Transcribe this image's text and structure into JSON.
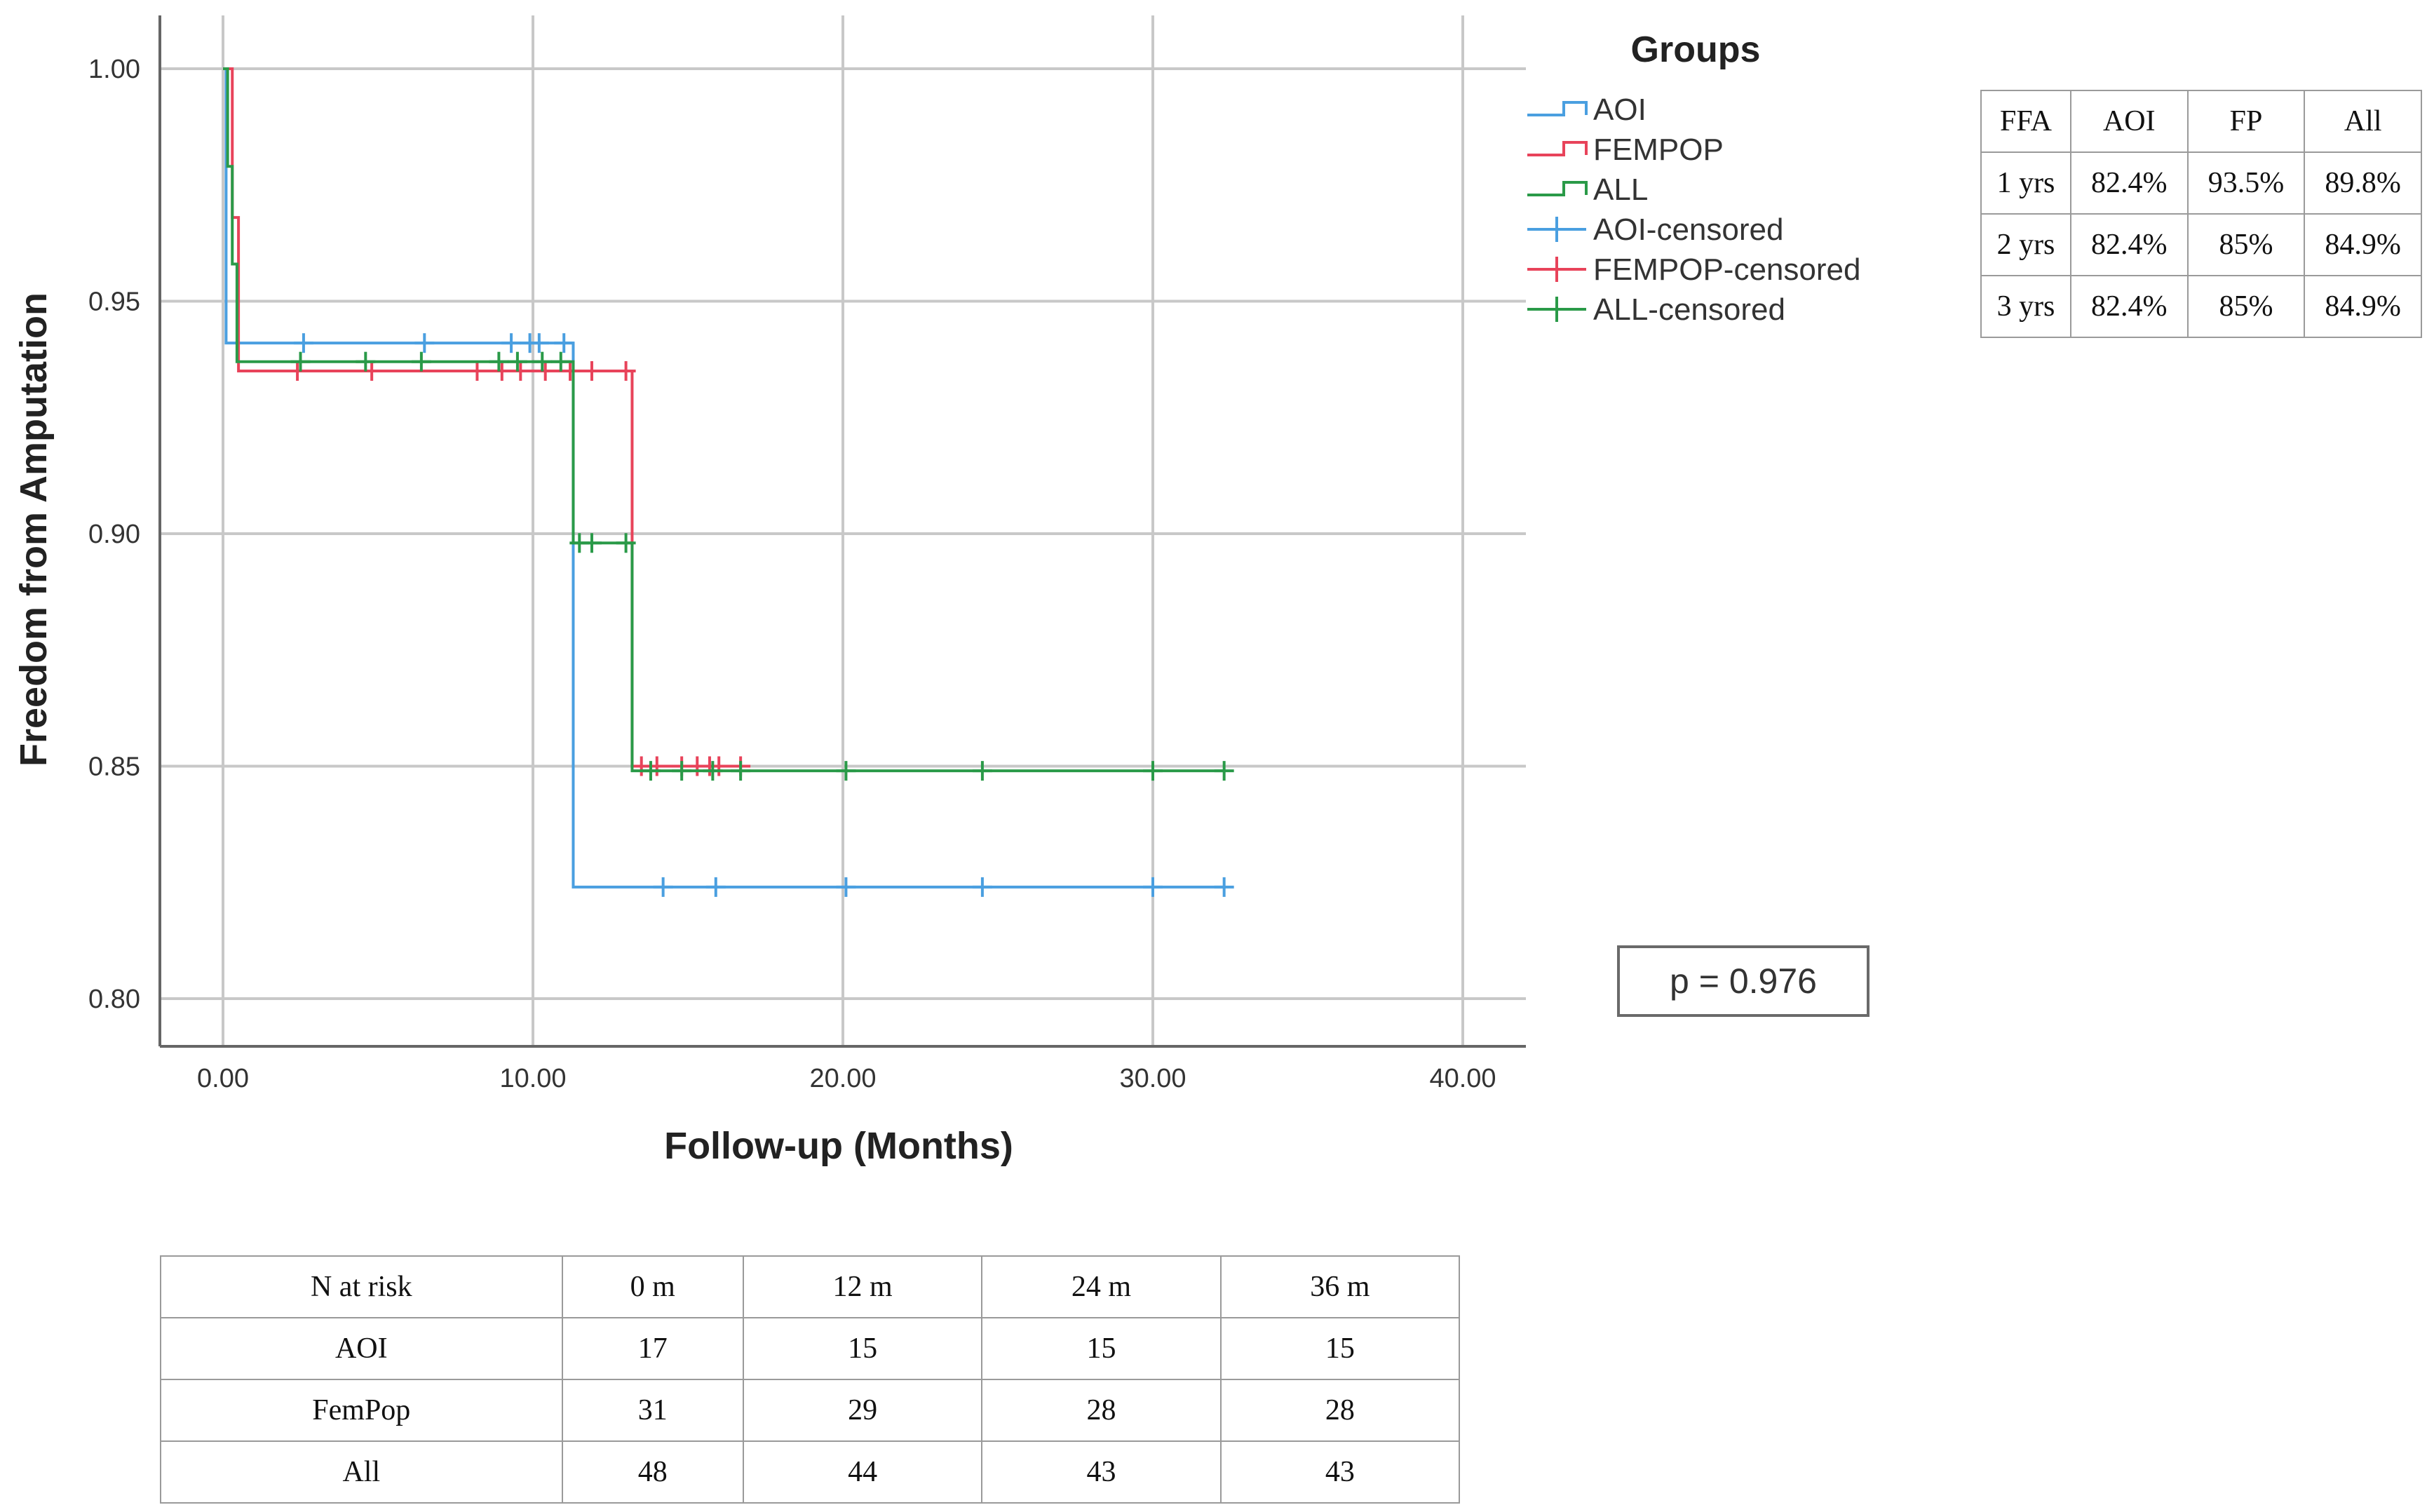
{
  "chart_data": {
    "type": "line",
    "subtype": "kaplan-meier step",
    "xlabel": "Follow-up (Months)",
    "ylabel": "Freedom from Amputation",
    "xlim": [
      -1.0,
      42.0
    ],
    "ylim": [
      0.79,
      1.01
    ],
    "x_ticks": [
      0,
      10,
      20,
      30,
      40
    ],
    "x_tick_labels": [
      "0.00",
      "10.00",
      "20.00",
      "30.00",
      "40.00"
    ],
    "y_ticks": [
      0.8,
      0.85,
      0.9,
      0.95,
      1.0
    ],
    "y_tick_labels": [
      "0.80",
      "0.85",
      "0.90",
      "0.95",
      "1.00"
    ],
    "grid": true,
    "legend_title": "Groups",
    "legend_position": "right",
    "series": [
      {
        "name": "AOI",
        "color": "#4a9fe0",
        "steps": [
          [
            0,
            1.0
          ],
          [
            0.1,
            0.941
          ],
          [
            11.3,
            0.824
          ],
          [
            32.3,
            0.824
          ]
        ],
        "censored_name": "AOI-censored",
        "censored": [
          [
            2.6,
            0.941
          ],
          [
            6.5,
            0.941
          ],
          [
            9.3,
            0.941
          ],
          [
            9.9,
            0.941
          ],
          [
            10.2,
            0.941
          ],
          [
            11.0,
            0.941
          ],
          [
            14.2,
            0.824
          ],
          [
            15.9,
            0.824
          ],
          [
            20.1,
            0.824
          ],
          [
            24.5,
            0.824
          ],
          [
            30.0,
            0.824
          ],
          [
            32.3,
            0.824
          ]
        ]
      },
      {
        "name": "FEMPOP",
        "color": "#e8435a",
        "steps": [
          [
            0,
            1.0
          ],
          [
            0.3,
            0.968
          ],
          [
            0.5,
            0.935
          ],
          [
            13.2,
            0.85
          ],
          [
            16.7,
            0.85
          ]
        ],
        "censored_name": "FEMPOP-censored",
        "censored": [
          [
            2.4,
            0.935
          ],
          [
            4.8,
            0.935
          ],
          [
            8.2,
            0.935
          ],
          [
            9.0,
            0.935
          ],
          [
            9.6,
            0.935
          ],
          [
            10.4,
            0.935
          ],
          [
            11.2,
            0.935
          ],
          [
            11.9,
            0.935
          ],
          [
            13.0,
            0.935
          ],
          [
            13.5,
            0.85
          ],
          [
            14.0,
            0.85
          ],
          [
            14.8,
            0.85
          ],
          [
            15.3,
            0.85
          ],
          [
            15.7,
            0.85
          ],
          [
            16.0,
            0.85
          ],
          [
            16.7,
            0.85
          ]
        ]
      },
      {
        "name": "ALL",
        "color": "#2a9a48",
        "steps": [
          [
            0,
            1.0
          ],
          [
            0.15,
            0.979
          ],
          [
            0.3,
            0.958
          ],
          [
            0.45,
            0.937
          ],
          [
            11.3,
            0.898
          ],
          [
            13.2,
            0.849
          ],
          [
            32.3,
            0.849
          ]
        ],
        "censored_name": "ALL-censored",
        "censored": [
          [
            2.5,
            0.937
          ],
          [
            4.6,
            0.937
          ],
          [
            6.4,
            0.937
          ],
          [
            8.9,
            0.937
          ],
          [
            9.5,
            0.937
          ],
          [
            10.3,
            0.937
          ],
          [
            10.9,
            0.937
          ],
          [
            11.5,
            0.898
          ],
          [
            11.9,
            0.898
          ],
          [
            13.0,
            0.898
          ],
          [
            13.8,
            0.849
          ],
          [
            14.8,
            0.849
          ],
          [
            15.8,
            0.849
          ],
          [
            16.7,
            0.849
          ],
          [
            20.1,
            0.849
          ],
          [
            24.5,
            0.849
          ],
          [
            30.0,
            0.849
          ],
          [
            32.3,
            0.849
          ]
        ]
      }
    ]
  },
  "p_value_text": "p = 0.976",
  "ffa_table": {
    "headers": [
      "FFA",
      "AOI",
      "FP",
      "All"
    ],
    "rows": [
      [
        "1 yrs",
        "82.4%",
        "93.5%",
        "89.8%"
      ],
      [
        "2 yrs",
        "82.4%",
        "85%",
        "84.9%"
      ],
      [
        "3 yrs",
        "82.4%",
        "85%",
        "84.9%"
      ]
    ]
  },
  "risk_table": {
    "headers": [
      "N at risk",
      "0 m",
      "12 m",
      "24 m",
      "36 m"
    ],
    "rows": [
      [
        "AOI",
        "17",
        "15",
        "15",
        "15"
      ],
      [
        "FemPop",
        "31",
        "29",
        "28",
        "28"
      ],
      [
        "All",
        "48",
        "44",
        "43",
        "43"
      ]
    ]
  }
}
